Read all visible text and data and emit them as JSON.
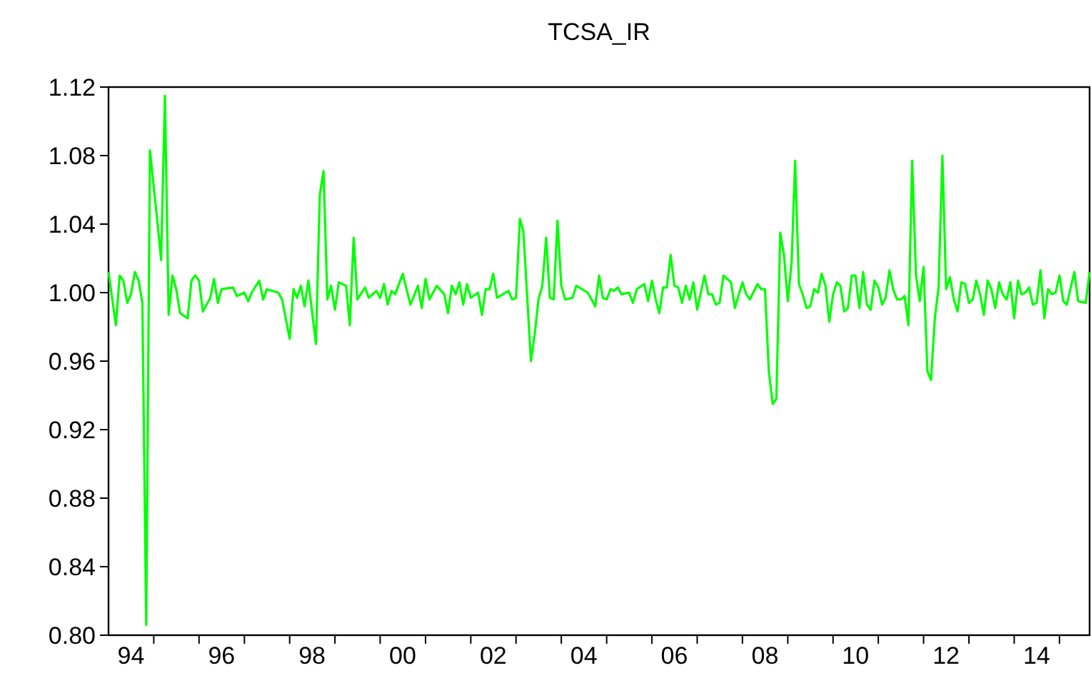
{
  "chart_data": {
    "type": "line",
    "title": "TCSA_IR",
    "grid": false,
    "marker": "none",
    "line_style": "solid",
    "xlim": [
      "1994-01",
      "2015-09"
    ],
    "xticks": [
      {
        "value": "1994-07",
        "label": "94"
      },
      {
        "value": "1995-01",
        "label": null
      },
      {
        "value": "1996-01",
        "label": null
      },
      {
        "value": "1996-07",
        "label": "96"
      },
      {
        "value": "1997-01",
        "label": null
      },
      {
        "value": "1998-01",
        "label": null
      },
      {
        "value": "1998-07",
        "label": "98"
      },
      {
        "value": "1999-01",
        "label": null
      },
      {
        "value": "2000-01",
        "label": null
      },
      {
        "value": "2000-07",
        "label": "00"
      },
      {
        "value": "2001-01",
        "label": null
      },
      {
        "value": "2002-01",
        "label": null
      },
      {
        "value": "2002-07",
        "label": "02"
      },
      {
        "value": "2003-01",
        "label": null
      },
      {
        "value": "2004-01",
        "label": null
      },
      {
        "value": "2004-07",
        "label": "04"
      },
      {
        "value": "2005-01",
        "label": null
      },
      {
        "value": "2006-01",
        "label": null
      },
      {
        "value": "2006-07",
        "label": "06"
      },
      {
        "value": "2007-01",
        "label": null
      },
      {
        "value": "2008-01",
        "label": null
      },
      {
        "value": "2008-07",
        "label": "08"
      },
      {
        "value": "2009-01",
        "label": null
      },
      {
        "value": "2010-01",
        "label": null
      },
      {
        "value": "2010-07",
        "label": "10"
      },
      {
        "value": "2011-01",
        "label": null
      },
      {
        "value": "2012-01",
        "label": null
      },
      {
        "value": "2012-07",
        "label": "12"
      },
      {
        "value": "2013-01",
        "label": null
      },
      {
        "value": "2014-01",
        "label": null
      },
      {
        "value": "2014-07",
        "label": "14"
      },
      {
        "value": "2015-01",
        "label": null
      }
    ],
    "ylim": [
      0.8,
      1.12
    ],
    "yticks": [
      {
        "value": 0.8,
        "label": "0.80"
      },
      {
        "value": 0.84,
        "label": "0.84"
      },
      {
        "value": 0.88,
        "label": "0.88"
      },
      {
        "value": 0.92,
        "label": "0.92"
      },
      {
        "value": 0.96,
        "label": "0.96"
      },
      {
        "value": 1.0,
        "label": "1.00"
      },
      {
        "value": 1.04,
        "label": "1.04"
      },
      {
        "value": 1.08,
        "label": "1.08"
      },
      {
        "value": 1.12,
        "label": "1.12"
      }
    ],
    "series": [
      {
        "color": "#00ff00",
        "x": [
          "1994-01",
          "1994-03",
          "1994-04",
          "1994-05",
          "1994-06",
          "1994-07",
          "1994-08",
          "1994-09",
          "1994-10",
          "1994-11",
          "1994-12",
          "1995-02",
          "1995-03",
          "1995-04",
          "1995-05",
          "1995-06",
          "1995-07",
          "1995-08",
          "1995-10",
          "1995-11",
          "1995-12",
          "1996-01",
          "1996-02",
          "1996-04",
          "1996-05",
          "1996-06",
          "1996-07",
          "1996-10",
          "1996-11",
          "1997-01",
          "1997-02",
          "1997-03",
          "1997-05",
          "1997-06",
          "1997-07",
          "1997-10",
          "1997-11",
          "1998-01",
          "1998-02",
          "1998-03",
          "1998-04",
          "1998-05",
          "1998-06",
          "1998-08",
          "1998-09",
          "1998-10",
          "1998-11",
          "1998-12",
          "1999-01",
          "1999-02",
          "1999-04",
          "1999-05",
          "1999-06",
          "1999-07",
          "1999-09",
          "1999-10",
          "1999-12",
          "2000-01",
          "2000-02",
          "2000-03",
          "2000-04",
          "2000-05",
          "2000-07",
          "2000-09",
          "2000-11",
          "2000-12",
          "2001-01",
          "2001-02",
          "2001-04",
          "2001-06",
          "2001-07",
          "2001-08",
          "2001-09",
          "2001-10",
          "2001-11",
          "2001-12",
          "2002-01",
          "2002-03",
          "2002-04",
          "2002-05",
          "2002-06",
          "2002-07",
          "2002-08",
          "2002-11",
          "2002-12",
          "2003-01",
          "2003-02",
          "2003-03",
          "2003-05",
          "2003-06",
          "2003-07",
          "2003-08",
          "2003-09",
          "2003-10",
          "2003-11",
          "2003-12",
          "2004-01",
          "2004-02",
          "2004-04",
          "2004-05",
          "2004-08",
          "2004-09",
          "2004-10",
          "2004-11",
          "2004-12",
          "2005-01",
          "2005-02",
          "2005-03",
          "2005-04",
          "2005-05",
          "2005-07",
          "2005-08",
          "2005-09",
          "2005-11",
          "2005-12",
          "2006-01",
          "2006-02",
          "2006-03",
          "2006-04",
          "2006-05",
          "2006-06",
          "2006-07",
          "2006-08",
          "2006-09",
          "2006-10",
          "2006-11",
          "2006-12",
          "2007-01",
          "2007-03",
          "2007-04",
          "2007-05",
          "2007-06",
          "2007-07",
          "2007-08",
          "2007-10",
          "2007-11",
          "2008-01",
          "2008-02",
          "2008-03",
          "2008-05",
          "2008-06",
          "2008-07",
          "2008-08",
          "2008-09",
          "2008-10",
          "2008-11",
          "2008-12",
          "2009-01",
          "2009-02",
          "2009-03",
          "2009-04",
          "2009-05",
          "2009-06",
          "2009-07",
          "2009-08",
          "2009-09",
          "2009-10",
          "2009-11",
          "2009-12",
          "2010-01",
          "2010-02",
          "2010-03",
          "2010-04",
          "2010-05",
          "2010-06",
          "2010-07",
          "2010-08",
          "2010-09",
          "2010-10",
          "2010-11",
          "2010-12",
          "2011-01",
          "2011-02",
          "2011-03",
          "2011-04",
          "2011-05",
          "2011-06",
          "2011-07",
          "2011-08",
          "2011-09",
          "2011-10",
          "2011-11",
          "2011-12",
          "2012-01",
          "2012-02",
          "2012-03",
          "2012-04",
          "2012-05",
          "2012-06",
          "2012-07",
          "2012-08",
          "2012-09",
          "2012-10",
          "2012-11",
          "2012-12",
          "2013-01",
          "2013-02",
          "2013-03",
          "2013-04",
          "2013-05",
          "2013-06",
          "2013-07",
          "2013-08",
          "2013-09",
          "2013-10",
          "2013-11",
          "2013-12",
          "2014-01",
          "2014-02",
          "2014-03",
          "2014-04",
          "2014-05",
          "2014-06",
          "2014-07",
          "2014-08",
          "2014-09",
          "2014-10",
          "2014-11",
          "2014-12",
          "2015-01",
          "2015-02",
          "2015-03",
          "2015-05",
          "2015-06",
          "2015-08",
          "2015-09"
        ],
        "values": [
          1.012,
          0.981,
          1.01,
          1.007,
          0.994,
          0.999,
          1.012,
          1.007,
          0.994,
          0.806,
          1.083,
          1.04,
          1.019,
          1.115,
          0.987,
          1.01,
          1.002,
          0.988,
          0.985,
          1.007,
          1.01,
          1.007,
          0.989,
          0.997,
          1.008,
          0.994,
          1.002,
          1.003,
          0.998,
          1.0,
          0.995,
          1.0,
          1.007,
          0.996,
          1.002,
          1.0,
          0.996,
          0.973,
          1.002,
          0.997,
          1.004,
          0.992,
          1.007,
          0.97,
          1.057,
          1.071,
          0.996,
          1.004,
          0.99,
          1.006,
          1.004,
          0.981,
          1.032,
          0.996,
          1.003,
          0.997,
          1.001,
          0.997,
          1.005,
          0.993,
          1.001,
          0.999,
          1.011,
          0.993,
          1.004,
          0.991,
          1.008,
          0.996,
          1.004,
          0.999,
          0.988,
          1.004,
          0.999,
          1.006,
          0.993,
          1.005,
          0.997,
          1.0,
          0.987,
          1.002,
          1.002,
          1.011,
          0.997,
          1.001,
          0.996,
          0.997,
          1.043,
          1.036,
          0.96,
          0.976,
          0.996,
          1.004,
          1.032,
          0.997,
          0.996,
          1.042,
          1.004,
          0.996,
          0.997,
          1.004,
          1.0,
          0.996,
          0.992,
          1.01,
          0.997,
          0.996,
          1.002,
          1.001,
          1.003,
          0.999,
          1.0,
          0.994,
          1.002,
          1.005,
          0.995,
          1.007,
          0.996,
          0.988,
          1.003,
          1.003,
          1.022,
          1.004,
          1.003,
          0.994,
          1.004,
          0.996,
          1.006,
          0.99,
          1.01,
          0.999,
          0.999,
          0.993,
          0.994,
          1.01,
          1.006,
          0.991,
          1.006,
          0.999,
          0.996,
          1.005,
          1.002,
          1.002,
          0.954,
          0.935,
          0.938,
          1.035,
          1.022,
          0.995,
          1.018,
          1.077,
          1.005,
          0.999,
          0.991,
          0.992,
          1.002,
          1.0,
          1.011,
          1.004,
          0.983,
          0.999,
          1.006,
          1.004,
          0.989,
          0.991,
          1.01,
          1.01,
          0.991,
          1.012,
          0.993,
          0.99,
          1.007,
          1.003,
          0.993,
          0.997,
          1.013,
          1.002,
          0.996,
          0.996,
          0.998,
          0.981,
          1.077,
          1.01,
          0.995,
          1.015,
          0.954,
          0.949,
          0.985,
          1.003,
          1.08,
          1.002,
          1.009,
          0.996,
          0.989,
          1.006,
          1.005,
          0.994,
          0.996,
          1.007,
          0.999,
          0.987,
          1.007,
          1.002,
          0.991,
          1.006,
          0.999,
          0.996,
          1.006,
          0.985,
          1.007,
          0.999,
          1.0,
          1.003,
          0.993,
          0.994,
          1.013,
          0.985,
          1.002,
          0.999,
          1.0,
          1.01,
          0.995,
          0.993,
          1.012,
          0.995,
          0.994,
          1.012
        ]
      }
    ]
  }
}
